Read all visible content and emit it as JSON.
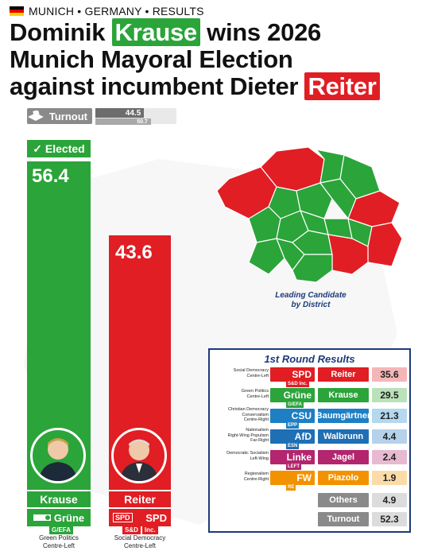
{
  "kicker": "MUNICH • GERMANY • RESULTS",
  "headline": {
    "part1": "Dominik",
    "winner": "Krause",
    "part2": "wins 2026",
    "part3": "Munich Mayoral Election",
    "part4": "against incumbent Dieter",
    "loser": "Reiter"
  },
  "turnout": {
    "label": "Turnout",
    "current": 44.5,
    "previous": 50.7
  },
  "winner_card": {
    "badge": "✓ Elected",
    "value": "56.4",
    "share": 56.4,
    "name": "Krause",
    "party": "Grüne",
    "group": "G/EFA",
    "ideology": [
      "Green Politics",
      "Centre-Left"
    ]
  },
  "runnerup_card": {
    "value": "43.6",
    "share": 43.6,
    "name": "Reiter",
    "party": "SPD",
    "party_prefix": "SPD",
    "group": "S&D",
    "group_extra": "Inc.",
    "ideology": [
      "Social Democracy",
      "Centre-Left"
    ]
  },
  "map": {
    "caption": [
      "Leading Candidate",
      "by District"
    ],
    "colors": {
      "green": "#2ba43a",
      "red": "#e01e24"
    }
  },
  "first_round": {
    "title": "1st Round Results",
    "rows": [
      {
        "ideology": [
          "Social Democracy",
          "Centre-Left"
        ],
        "party": "SPD",
        "group": "S&D",
        "extra": "Inc.",
        "candidate": "Reiter",
        "value": "35.6",
        "color": "#e01e24",
        "tint": "#f4b6b7"
      },
      {
        "ideology": [
          "Green Politics",
          "Centre-Left"
        ],
        "party": "Grüne",
        "group": "G/EFA",
        "extra": "",
        "candidate": "Krause",
        "value": "29.5",
        "color": "#2ba43a",
        "tint": "#b9e2b9"
      },
      {
        "ideology": [
          "Christian Democracy",
          "Conservatism",
          "Centre-Right"
        ],
        "party": "CSU",
        "group": "EPP",
        "extra": "",
        "candidate": "Baumgärtner",
        "value": "21.3",
        "color": "#1e7fc4",
        "tint": "#b4d8ef"
      },
      {
        "ideology": [
          "Nationalism",
          "Right-Wing Populism",
          "Far-Right"
        ],
        "party": "AfD",
        "group": "ESN",
        "extra": "",
        "candidate": "Walbrunn",
        "value": "4.4",
        "color": "#1f6fb5",
        "tint": "#b5d2ea"
      },
      {
        "ideology": [
          "Democratic Socialism",
          "Left-Wing"
        ],
        "party": "Linke",
        "group": "LEFT",
        "extra": "",
        "candidate": "Jagel",
        "value": "2.4",
        "color": "#b3256e",
        "tint": "#e7bad1"
      },
      {
        "ideology": [
          "Regionalism",
          "Centre-Right"
        ],
        "party": "FW",
        "group": "RE",
        "extra": "",
        "candidate": "Piazolo",
        "value": "1.9",
        "color": "#f39200",
        "tint": "#fbdca9"
      },
      {
        "ideology": [],
        "party": "",
        "group": "",
        "extra": "",
        "candidate": "Others",
        "value": "4.9",
        "color": "#8a8a8a",
        "tint": "#dcdcdc"
      },
      {
        "ideology": [],
        "party": "",
        "group": "",
        "extra": "",
        "candidate": "Turnout",
        "value": "52.3",
        "color": "#8a8a8a",
        "tint": "#dcdcdc"
      }
    ]
  }
}
